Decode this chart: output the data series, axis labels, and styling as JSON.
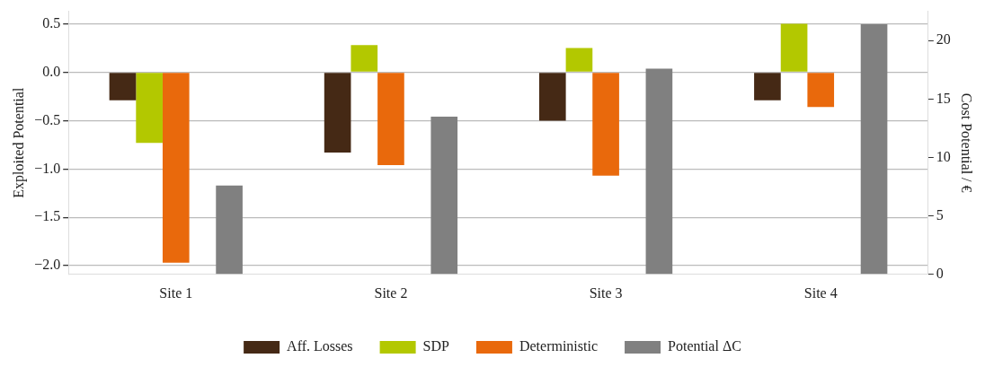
{
  "chart_data": {
    "type": "bar",
    "categories": [
      "Site 1",
      "Site 2",
      "Site 3",
      "Site 4"
    ],
    "ylabel": "Exploited Potential",
    "y2label": "Cost Potential / €",
    "series": [
      {
        "name": "Aff. Losses",
        "color": "#452915",
        "values": [
          -0.29,
          -0.83,
          -0.5,
          -0.29
        ]
      },
      {
        "name": "SDP",
        "color": "#b3c800",
        "values": [
          -0.73,
          0.28,
          0.25,
          0.5
        ]
      },
      {
        "name": "Deterministic",
        "color": "#e9690c",
        "values": [
          -1.97,
          -0.96,
          -1.07,
          -0.36
        ]
      },
      {
        "name": "Potential ΔC",
        "color": "#808080",
        "axis": "y2",
        "values": [
          7.6,
          13.5,
          17.6,
          21.4
        ]
      }
    ],
    "ylim": [
      -2.09,
      0.63
    ],
    "yticks": [
      {
        "value": 0.5,
        "label": "0.5"
      },
      {
        "value": 0,
        "label": "0.0"
      },
      {
        "value": -0.5,
        "label": "−0.5"
      },
      {
        "value": -1,
        "label": "−1.0"
      },
      {
        "value": -1.5,
        "label": "−1.5"
      },
      {
        "value": -2,
        "label": "−2.0"
      }
    ],
    "y2lim": [
      0,
      22.5
    ],
    "y2ticks": [
      0,
      5,
      10,
      15,
      20
    ],
    "grid": "y",
    "legend": "bottom"
  }
}
